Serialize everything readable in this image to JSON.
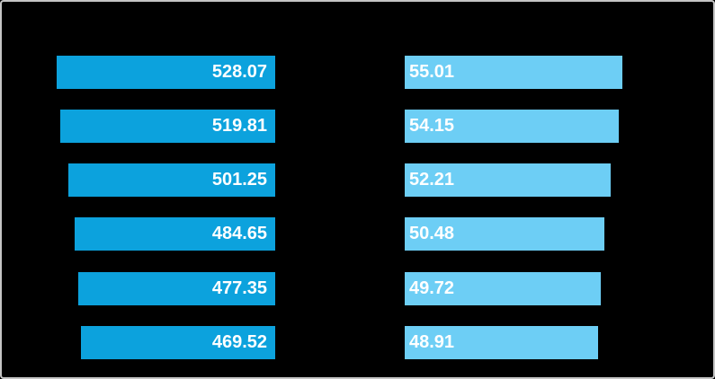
{
  "frame": {
    "background": "#000000",
    "border_color": "#c5c5c5"
  },
  "chart_data": {
    "type": "bar",
    "orientation": "horizontal",
    "rows": 6,
    "label_text_color": "#ffffff",
    "series": [
      {
        "name": "left_bars",
        "bar_color": "#0ca2dd",
        "bar_alignment": "right-aligned, growing leftward from shared axis",
        "value_label_position": "inside bar, right edge",
        "xlim": [
          0,
          560
        ],
        "values": [
          528.07,
          519.81,
          501.25,
          484.65,
          477.35,
          469.52
        ],
        "labels": [
          "528.07",
          "519.81",
          "501.25",
          "484.65",
          "477.35",
          "469.52"
        ]
      },
      {
        "name": "right_bars",
        "bar_color": "#6dcef5",
        "bar_alignment": "left-aligned, growing rightward from shared axis",
        "value_label_position": "inside bar, left edge",
        "xlim": [
          0,
          56
        ],
        "values": [
          55.01,
          54.15,
          52.21,
          50.48,
          49.72,
          48.91
        ],
        "labels": [
          "55.01",
          "54.15",
          "52.21",
          "50.48",
          "49.72",
          "48.91"
        ]
      }
    ]
  }
}
